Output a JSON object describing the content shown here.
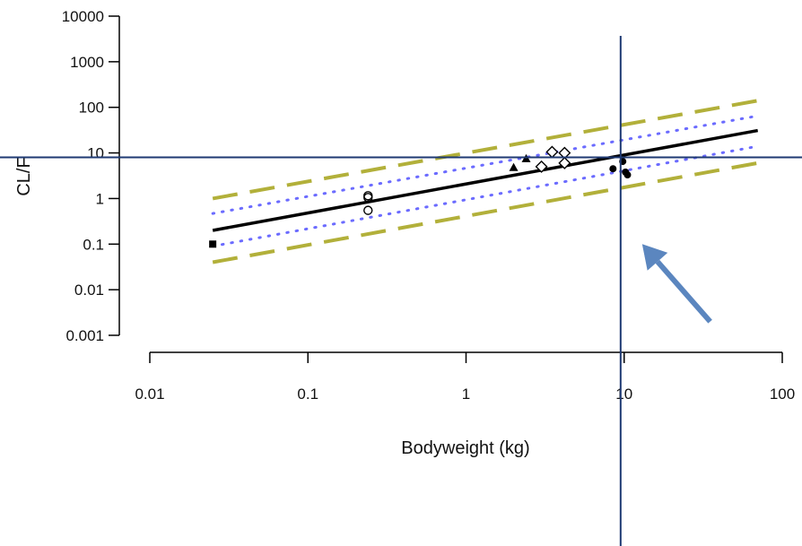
{
  "chart_data": {
    "type": "scatter",
    "title": "",
    "xlabel": "Bodyweight (kg)",
    "ylabel": "CL/F",
    "x_scale": "log",
    "y_scale": "log",
    "xlim": [
      0.01,
      100
    ],
    "ylim": [
      0.001,
      10000
    ],
    "x_ticks": [
      "0.01",
      "0.1",
      "1",
      "10",
      "100"
    ],
    "y_ticks": [
      "10000",
      "1000",
      "100",
      "10",
      "1",
      "0.1",
      "0.01",
      "0.001"
    ],
    "grid": false,
    "legend": "none",
    "colors": {
      "fit": "#000000",
      "ci_dotted": "#6b6bff",
      "pi_dashed": "#b2b03a",
      "reference_lines": "#1f3a73",
      "arrow": "#5b86bf"
    },
    "fit_line": {
      "x": [
        0.025,
        70
      ],
      "y": [
        0.2,
        31
      ]
    },
    "inner_band_upper": {
      "x": [
        0.025,
        70
      ],
      "y": [
        0.47,
        65
      ]
    },
    "inner_band_lower": {
      "x": [
        0.025,
        70
      ],
      "y": [
        0.09,
        14
      ]
    },
    "outer_band_upper": {
      "x": [
        0.025,
        70
      ],
      "y": [
        1.0,
        140
      ]
    },
    "outer_band_lower": {
      "x": [
        0.025,
        70
      ],
      "y": [
        0.04,
        6
      ]
    },
    "reference_lines": {
      "x": 9.5,
      "y": 8.0
    },
    "points": [
      {
        "x": 0.025,
        "y": 0.1,
        "marker": "square-filled"
      },
      {
        "x": 0.24,
        "y": 1.15,
        "marker": "circle-open"
      },
      {
        "x": 0.24,
        "y": 1.05,
        "marker": "circle-open"
      },
      {
        "x": 0.24,
        "y": 0.55,
        "marker": "circle-open"
      },
      {
        "x": 2.0,
        "y": 4.8,
        "marker": "triangle-filled"
      },
      {
        "x": 2.4,
        "y": 7.5,
        "marker": "triangle-filled"
      },
      {
        "x": 3.0,
        "y": 5.0,
        "marker": "diamond-open"
      },
      {
        "x": 3.5,
        "y": 10.5,
        "marker": "diamond-open"
      },
      {
        "x": 4.2,
        "y": 10.0,
        "marker": "diamond-open"
      },
      {
        "x": 4.2,
        "y": 6.0,
        "marker": "diamond-open"
      },
      {
        "x": 8.5,
        "y": 4.5,
        "marker": "circle-filled"
      },
      {
        "x": 9.8,
        "y": 6.5,
        "marker": "circle-filled"
      },
      {
        "x": 10.2,
        "y": 3.8,
        "marker": "circle-filled"
      },
      {
        "x": 10.5,
        "y": 3.3,
        "marker": "circle-filled"
      }
    ],
    "annotation_arrow": {
      "from": [
        35,
        0.002
      ],
      "to": [
        13,
        0.1
      ],
      "text": ""
    }
  }
}
